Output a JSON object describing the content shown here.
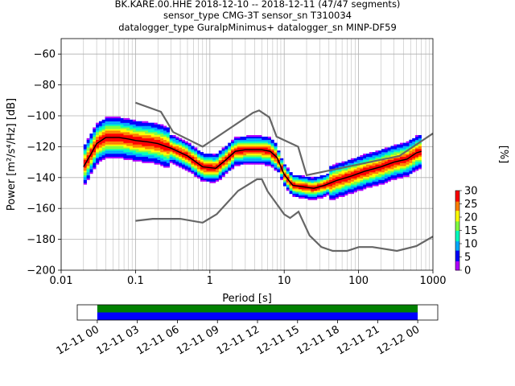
{
  "title": {
    "line1": "BK.KARE.00.HHE   2018-12-10 -- 2018-12-11  (47/47 segments)",
    "line2": "sensor_type CMG-3T sensor_sn T310034",
    "line3": "datalogger_type GuralpMinimus+ datalogger_sn MINP-DF59"
  },
  "chart_data": [
    {
      "type": "heatmap",
      "title": "",
      "xlabel": "Period [s]",
      "ylabel": "Power [m²/s⁴/Hz] [dB]",
      "xscale": "log",
      "xlim": [
        0.01,
        1000
      ],
      "ylim": [
        -200,
        -50
      ],
      "x_tick_labels": [
        "0.01",
        "0.1",
        "1",
        "10",
        "100",
        "1000"
      ],
      "y_tick_labels": [
        "-60",
        "-80",
        "-100",
        "-120",
        "-140",
        "-160",
        "-180",
        "-200"
      ],
      "grid": true,
      "colorbar": {
        "label": "[%]",
        "range": [
          0,
          30
        ],
        "tick_labels": [
          "0",
          "5",
          "10",
          "15",
          "20",
          "25",
          "30"
        ],
        "colors": [
          "#ffffff",
          "#b000ff",
          "#0000ff",
          "#00aaff",
          "#00ffc0",
          "#80ff40",
          "#ffff00",
          "#ff8000",
          "#ff0000",
          "#800000"
        ]
      },
      "noise_models": {
        "high": {
          "x": [
            0.1,
            0.22,
            0.32,
            0.8,
            3.8,
            4.6,
            6.3,
            7.9,
            15.4,
            20,
            354.8,
            1000
          ],
          "y": [
            -91.5,
            -97.4,
            -110.5,
            -120,
            -98,
            -96.5,
            -101,
            -113.5,
            -120,
            -138.5,
            -126,
            -111.4
          ]
        },
        "low": {
          "x": [
            0.1,
            0.17,
            0.4,
            0.8,
            1.24,
            2.4,
            4.3,
            5,
            6,
            10,
            12,
            15.6,
            21.9,
            31.6,
            45,
            70,
            101,
            154,
            328,
            600,
            1000
          ],
          "y": [
            -168,
            -166.7,
            -166.7,
            -169.2,
            -163.7,
            -148.6,
            -141.1,
            -141.1,
            -149,
            -163.8,
            -166.2,
            -162.1,
            -177.5,
            -185,
            -187.5,
            -187.5,
            -185,
            -185,
            -187.5,
            -184.4,
            -178.2
          ]
        }
      },
      "mode_curve": {
        "x": [
          0.02,
          0.025,
          0.03,
          0.04,
          0.06,
          0.08,
          0.1,
          0.15,
          0.2,
          0.3,
          0.5,
          0.8,
          1.2,
          1.6,
          2.2,
          3,
          4,
          5,
          6.5,
          8,
          10,
          13,
          18,
          25,
          35,
          50,
          80,
          120,
          200,
          300,
          450,
          600,
          700
        ],
        "y": [
          -133,
          -125,
          -118,
          -114,
          -114,
          -115,
          -116,
          -117,
          -118,
          -121,
          -126,
          -133,
          -134,
          -129,
          -123,
          -122,
          -122,
          -122,
          -123,
          -127,
          -138,
          -145,
          -146,
          -147,
          -145,
          -142,
          -139,
          -136,
          -133,
          -130,
          -128,
          -124,
          -123
        ]
      }
    },
    {
      "type": "timeline",
      "title": "",
      "x_tick_labels": [
        "12-11 00",
        "12-11 03",
        "12-11 06",
        "12-11 09",
        "12-11 12",
        "12-11 15",
        "12-11 18",
        "12-11 21",
        "12-12 00"
      ],
      "xlim_hours": [
        -1.5,
        25.5
      ],
      "coverage_hours": [
        0,
        24
      ],
      "bar_colors": [
        "#008000",
        "#0000ff"
      ]
    }
  ]
}
